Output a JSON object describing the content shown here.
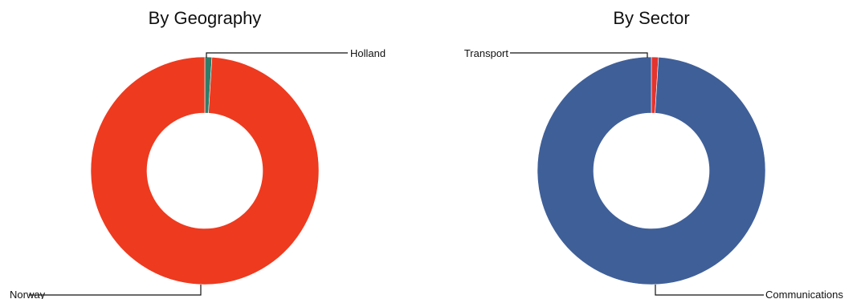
{
  "chart_data": [
    {
      "type": "pie",
      "title": "By Geography",
      "categories": [
        "Holland",
        "Norway"
      ],
      "values": [
        1,
        99
      ],
      "colors": [
        "#2e7d6a",
        "#ee3a1f"
      ],
      "labels": [
        {
          "text": "Holland",
          "side": "top-right"
        },
        {
          "text": "Norway",
          "side": "bottom-left"
        }
      ]
    },
    {
      "type": "pie",
      "title": "By Sector",
      "categories": [
        "Transport",
        "Communications"
      ],
      "values": [
        1,
        99
      ],
      "colors": [
        "#e3342f",
        "#3f5f98"
      ],
      "labels": [
        {
          "text": "Transport",
          "side": "top-left"
        },
        {
          "text": "Communications",
          "side": "bottom-right"
        }
      ]
    }
  ]
}
